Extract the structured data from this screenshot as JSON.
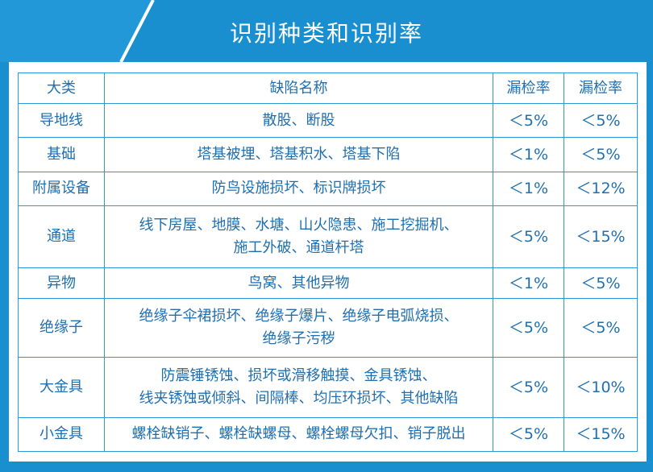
{
  "title": "识别种类和识别率",
  "colors": {
    "background": "#1a8fd0",
    "border": "#2b9ad6",
    "text": "#1f6fb0"
  },
  "table": {
    "headers": [
      "大类",
      "缺陷名称",
      "漏检率",
      "漏检率"
    ],
    "rows": [
      {
        "category": "导地线",
        "defects": [
          "散股、断股"
        ],
        "rate1": "＜5%",
        "rate2": "＜5%"
      },
      {
        "category": "基础",
        "defects": [
          "塔基被埋、塔基积水、塔基下陷"
        ],
        "rate1": "＜1%",
        "rate2": "＜5%"
      },
      {
        "category": "附属设备",
        "defects": [
          "防鸟设施损坏、标识牌损坏"
        ],
        "rate1": "＜1%",
        "rate2": "＜12%"
      },
      {
        "category": "通道",
        "defects": [
          "线下房屋、地膜、水塘、山火隐患、施工挖掘机、",
          "施工外破、通道杆塔"
        ],
        "rate1": "＜5%",
        "rate2": "＜15%"
      },
      {
        "category": "异物",
        "defects": [
          "鸟窝、其他异物"
        ],
        "rate1": "＜1%",
        "rate2": "＜5%"
      },
      {
        "category": "绝缘子",
        "defects": [
          "绝缘子伞裙损坏、绝缘子爆片、绝缘子电弧烧损、",
          "绝缘子污秽"
        ],
        "rate1": "＜5%",
        "rate2": "＜5%"
      },
      {
        "category": "大金具",
        "defects": [
          "防震锤锈蚀、损坏或滑移触摸、金具锈蚀、",
          "线夹锈蚀或倾斜、间隔棒、均压环损坏、其他缺陷"
        ],
        "rate1": "＜5%",
        "rate2": "＜10%"
      },
      {
        "category": "小金具",
        "defects": [
          "螺栓缺销子、螺栓缺螺母、螺栓螺母欠扣、销子脱出"
        ],
        "rate1": "＜5%",
        "rate2": "＜15%"
      }
    ]
  }
}
